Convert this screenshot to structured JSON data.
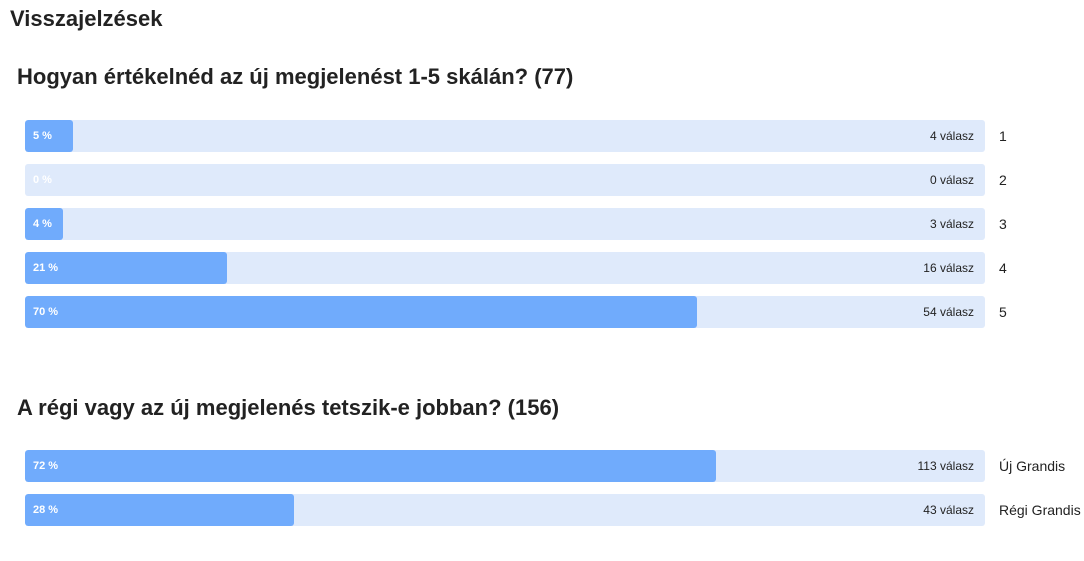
{
  "header": {
    "title": "Visszajelzések"
  },
  "polls": [
    {
      "question": "Hogyan értékelnéd az új megjelenést 1-5 skálán? (77)",
      "options": [
        {
          "label": "1",
          "percent": 5,
          "percent_label": "5 %",
          "count_label": "4 válasz"
        },
        {
          "label": "2",
          "percent": 0,
          "percent_label": "0 %",
          "count_label": "0 válasz"
        },
        {
          "label": "3",
          "percent": 4,
          "percent_label": "4 %",
          "count_label": "3 válasz"
        },
        {
          "label": "4",
          "percent": 21,
          "percent_label": "21 %",
          "count_label": "16 válasz"
        },
        {
          "label": "5",
          "percent": 70,
          "percent_label": "70 %",
          "count_label": "54 válasz"
        }
      ]
    },
    {
      "question": "A régi vagy az új megjelenés tetszik-e jobban? (156)",
      "options": [
        {
          "label": "Új Grandis",
          "percent": 72,
          "percent_label": "72 %",
          "count_label": "113 válasz"
        },
        {
          "label": "Régi Grandis",
          "percent": 28,
          "percent_label": "28 %",
          "count_label": "43 válasz"
        }
      ]
    }
  ]
}
